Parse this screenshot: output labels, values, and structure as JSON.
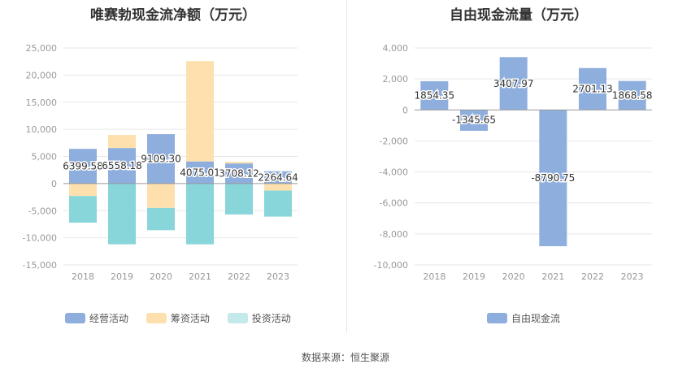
{
  "source": "数据来源：恒生聚源",
  "colors": {
    "operating": "#8eaedd",
    "financing": "#fde0ae",
    "investing": "#88d5da",
    "freecash": "#8eaedd",
    "grid": "#e6e6e6",
    "axis": "#999999",
    "tick": "#999999"
  },
  "chart_data": [
    {
      "type": "bar",
      "stacked": true,
      "title": "唯赛勃现金流净额（万元）",
      "categories": [
        "2018",
        "2019",
        "2020",
        "2021",
        "2022",
        "2023"
      ],
      "ylim": [
        -15000,
        25000
      ],
      "yticks": [
        25000,
        20000,
        15000,
        10000,
        5000,
        0,
        -5000,
        -10000,
        -15000
      ],
      "ytick_labels": [
        "25,000",
        "20,000",
        "15,000",
        "10,000",
        "5,000",
        "0",
        "-5,000",
        "-10,000",
        "-15,000"
      ],
      "series": [
        {
          "name": "经营活动",
          "key": "operating",
          "values": [
            6399.58,
            6558.18,
            9109.3,
            4075.01,
            3708.12,
            2264.64
          ],
          "labels": [
            "6399.58",
            "6558.18",
            "9109.30",
            "4075.01",
            "3708.12",
            "2264.64"
          ]
        },
        {
          "name": "筹资活动",
          "key": "financing",
          "values": [
            -2300,
            2400,
            -4500,
            18500,
            300,
            -1300
          ]
        },
        {
          "name": "投资活动",
          "key": "investing",
          "values": [
            -4900,
            -11200,
            -4100,
            -11200,
            -5700,
            -4800
          ]
        }
      ],
      "legend": [
        "经营活动",
        "筹资活动",
        "投资活动"
      ]
    },
    {
      "type": "bar",
      "title": "自由现金流量（万元）",
      "categories": [
        "2018",
        "2019",
        "2020",
        "2021",
        "2022",
        "2023"
      ],
      "ylim": [
        -10000,
        4000
      ],
      "yticks": [
        4000,
        2000,
        0,
        -2000,
        -4000,
        -6000,
        -8000,
        -10000
      ],
      "ytick_labels": [
        "4,000",
        "2,000",
        "0",
        "-2,000",
        "-4,000",
        "-6,000",
        "-8,000",
        "-10,000"
      ],
      "series": [
        {
          "name": "自由现金流",
          "key": "freecash",
          "values": [
            1854.35,
            -1345.65,
            3407.97,
            -8790.75,
            2701.13,
            1868.58
          ],
          "labels": [
            "1854.35",
            "-1345.65",
            "3407.97",
            "-8790.75",
            "2701.13",
            "1868.58"
          ]
        }
      ],
      "legend": [
        "自由现金流"
      ]
    }
  ]
}
